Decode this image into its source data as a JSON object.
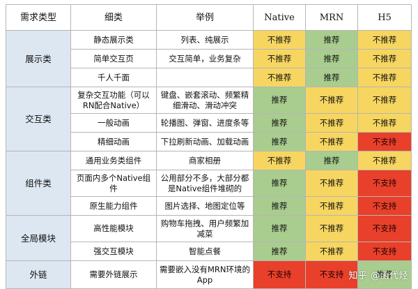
{
  "header": {
    "type": "需求类型",
    "sub": "细类",
    "example": "举例",
    "native": "Native",
    "mrn": "MRN",
    "h5": "H5"
  },
  "colors": {
    "yellow": "#f6d660",
    "green": "#a9cd8f",
    "red": "#e8402a",
    "type_bg": "#dde7f1"
  },
  "groups": [
    {
      "type": "展示类",
      "rows": [
        {
          "sub": "静态展示类",
          "example": "列表、纯展示",
          "native": {
            "text": "不推荐",
            "color": "yellow"
          },
          "mrn": {
            "text": "推荐",
            "color": "green"
          },
          "h5": {
            "text": "不推荐",
            "color": "yellow"
          }
        },
        {
          "sub": "简单交互页",
          "example": "交互简单，业务复杂",
          "native": {
            "text": "不推荐",
            "color": "yellow"
          },
          "mrn": {
            "text": "推荐",
            "color": "green"
          },
          "h5": {
            "text": "不推荐",
            "color": "yellow"
          }
        },
        {
          "sub": "千人千面",
          "example": "",
          "native": {
            "text": "不推荐",
            "color": "yellow"
          },
          "mrn": {
            "text": "推荐",
            "color": "green"
          },
          "h5": {
            "text": "不推荐",
            "color": "yellow"
          }
        }
      ]
    },
    {
      "type": "交互类",
      "rows": [
        {
          "sub": "复杂交互功能（可以RN配合Native）",
          "example": "键盘、嵌套滚动、频繁精细滑动、滑动冲突",
          "native": {
            "text": "推荐",
            "color": "green"
          },
          "mrn": {
            "text": "不推荐",
            "color": "yellow"
          },
          "h5": {
            "text": "不推荐",
            "color": "yellow"
          }
        },
        {
          "sub": "一般动画",
          "example": "轮播图、弹窗、进度条等",
          "native": {
            "text": "推荐",
            "color": "green"
          },
          "mrn": {
            "text": "不推荐",
            "color": "yellow"
          },
          "h5": {
            "text": "不推荐",
            "color": "yellow"
          }
        },
        {
          "sub": "精细动画",
          "example": "下拉刷新动画、加载动画",
          "native": {
            "text": "推荐",
            "color": "green"
          },
          "mrn": {
            "text": "不推荐",
            "color": "yellow"
          },
          "h5": {
            "text": "不支持",
            "color": "red"
          }
        }
      ]
    },
    {
      "type": "组件类",
      "rows": [
        {
          "sub": "通用业务类组件",
          "example": "商家相册",
          "native": {
            "text": "不推荐",
            "color": "yellow"
          },
          "mrn": {
            "text": "推荐",
            "color": "green"
          },
          "h5": {
            "text": "不推荐",
            "color": "yellow"
          }
        },
        {
          "sub": "页面内多个Native组件",
          "example": "公用部分不多，大部分都是Native组件堆砌的",
          "native": {
            "text": "推荐",
            "color": "green"
          },
          "mrn": {
            "text": "不推荐",
            "color": "yellow"
          },
          "h5": {
            "text": "不支持",
            "color": "red"
          }
        },
        {
          "sub": "原生能力组件",
          "example": "图片选择、地图定位等",
          "native": {
            "text": "推荐",
            "color": "green"
          },
          "mrn": {
            "text": "不推荐",
            "color": "yellow"
          },
          "h5": {
            "text": "不支持",
            "color": "red"
          }
        }
      ]
    },
    {
      "type": "全局模块",
      "rows": [
        {
          "sub": "高性能模块",
          "example": "购物车拖拽、用户频繁加减菜",
          "native": {
            "text": "推荐",
            "color": "green"
          },
          "mrn": {
            "text": "不推荐",
            "color": "yellow"
          },
          "h5": {
            "text": "不支持",
            "color": "red"
          }
        },
        {
          "sub": "强交互模块",
          "example": "智能点餐",
          "native": {
            "text": "推荐",
            "color": "green"
          },
          "mrn": {
            "text": "不推荐",
            "color": "yellow"
          },
          "h5": {
            "text": "不支持",
            "color": "red"
          }
        }
      ]
    },
    {
      "type": "外链",
      "rows": [
        {
          "sub": "需要外链展示",
          "example": "需要嵌入没有MRN环境的App",
          "native": {
            "text": "不支持",
            "color": "red"
          },
          "mrn": {
            "text": "不支持",
            "color": "red"
          },
          "h5": {
            "text": "推荐",
            "color": "green"
          }
        }
      ]
    }
  ],
  "watermark": "知乎 @函代烃"
}
